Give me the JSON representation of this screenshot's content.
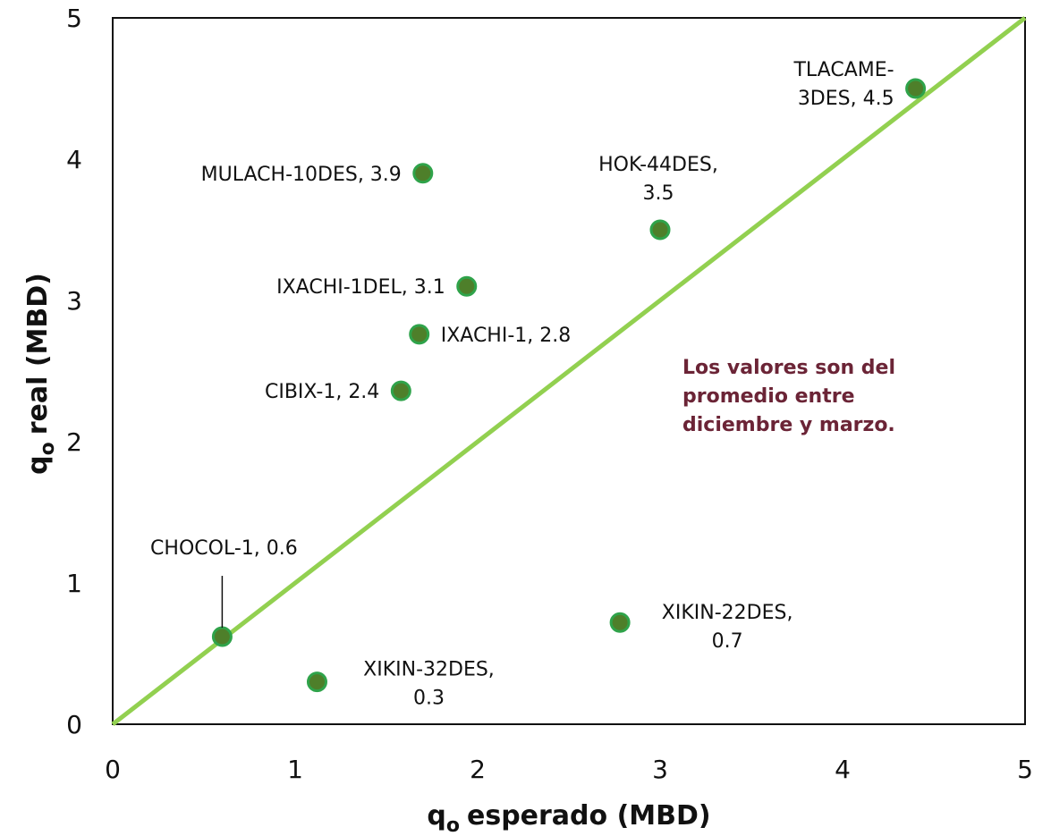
{
  "chart_data": {
    "type": "scatter",
    "title": "",
    "xlabel": "esperado (MBD)",
    "ylabel": "real (MBD)",
    "axis_symbol": "q",
    "axis_subscript": "o",
    "xlim": [
      0,
      5
    ],
    "ylim": [
      0,
      5
    ],
    "x_ticks": [
      "0",
      "1",
      "2",
      "3",
      "4",
      "5"
    ],
    "y_ticks": [
      "0",
      "1",
      "2",
      "3",
      "4",
      "5"
    ],
    "grid": false,
    "reference_line": {
      "from": [
        0,
        0
      ],
      "to": [
        5,
        5
      ],
      "color": "#92d050"
    },
    "marker_fill": "#4e7f2a",
    "marker_stroke": "#2fa34a",
    "points": [
      {
        "x": 0.6,
        "y": 0.62,
        "label_lines": [
          "CHOCOL-1, 0.6"
        ],
        "anchor": "middle",
        "leader_line": true
      },
      {
        "x": 1.12,
        "y": 0.3,
        "label_lines": [
          "XIKIN-32DES,",
          "0.3"
        ],
        "anchor": "middle"
      },
      {
        "x": 1.58,
        "y": 2.36,
        "label_lines": [
          "CIBIX-1, 2.4"
        ],
        "anchor": "end"
      },
      {
        "x": 1.68,
        "y": 2.76,
        "label_lines": [
          "IXACHI-1, 2.8"
        ],
        "anchor": "start"
      },
      {
        "x": 1.7,
        "y": 3.9,
        "label_lines": [
          "MULACH-10DES, 3.9"
        ],
        "anchor": "end"
      },
      {
        "x": 1.94,
        "y": 3.1,
        "label_lines": [
          "IXACHI-1DEL, 3.1"
        ],
        "anchor": "end"
      },
      {
        "x": 2.78,
        "y": 0.72,
        "label_lines": [
          "XIKIN-22DES,",
          "0.7"
        ],
        "anchor": "middle"
      },
      {
        "x": 3.0,
        "y": 3.5,
        "label_lines": [
          "HOK-44DES,",
          "3.5"
        ],
        "anchor": "middle"
      },
      {
        "x": 4.4,
        "y": 4.5,
        "label_lines": [
          "TLACAME-",
          "3DES, 4.5"
        ],
        "anchor": "end"
      }
    ],
    "annotation": [
      "Los valores son del",
      "promedio entre",
      "diciembre y marzo."
    ]
  }
}
